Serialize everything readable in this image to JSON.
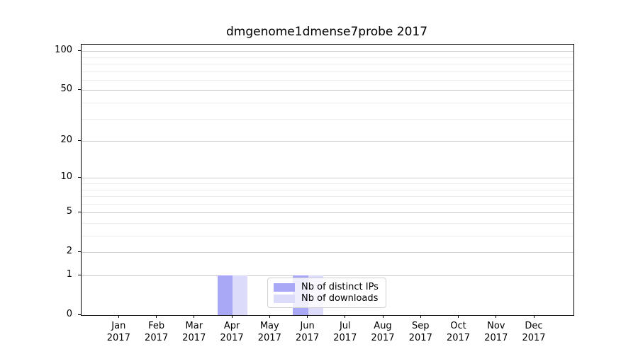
{
  "chart_data": {
    "type": "bar",
    "title": "dmgenome1dmense7probe 2017",
    "x": {
      "categories": [
        "Jan",
        "Feb",
        "Mar",
        "Apr",
        "May",
        "Jun",
        "Jul",
        "Aug",
        "Sep",
        "Oct",
        "Nov",
        "Dec"
      ],
      "year_label": "2017"
    },
    "series": [
      {
        "name": "Nb of distinct IPs",
        "color": "#a8a8f6",
        "values": [
          0,
          0,
          0,
          1,
          0,
          1,
          0,
          0,
          0,
          0,
          0,
          0
        ]
      },
      {
        "name": "Nb of downloads",
        "color": "#dcdcfa",
        "values": [
          0,
          0,
          0,
          1,
          0,
          1,
          0,
          0,
          0,
          0,
          0,
          0
        ]
      }
    ],
    "yaxis": {
      "scale": "log1p",
      "ylim": [
        0,
        112
      ],
      "major_ticks": [
        0,
        1,
        2,
        5,
        10,
        20,
        50,
        100
      ],
      "minor_gridlines": [
        3,
        4,
        6,
        7,
        8,
        9,
        30,
        40,
        60,
        70,
        80,
        90
      ]
    },
    "legend": {
      "entries": [
        "Nb of distinct IPs",
        "Nb of downloads"
      ],
      "location": "lower center"
    },
    "colors": {
      "bar_distinct_ips": "#a8a8f6",
      "bar_downloads": "#dcdcfa",
      "major_grid": "#cbcbcb",
      "minor_grid": "#ececec",
      "spine": "#000000",
      "background": "#ffffff"
    }
  }
}
